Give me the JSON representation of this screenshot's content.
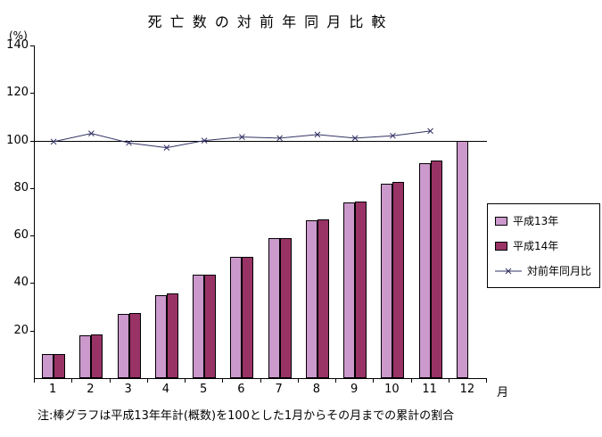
{
  "chart_data": {
    "type": "bar",
    "subtype": "grouped bars with overlaid line series",
    "title": "死 亡 数 の 対 前 年 同 月 比 較",
    "ylabel": "(%)",
    "xlabel": "月",
    "ylim": [
      0,
      140
    ],
    "ytick_step": 20,
    "grid": "single black reference line at 100 only",
    "legend_position": "right",
    "categories": [
      "1",
      "2",
      "3",
      "4",
      "5",
      "6",
      "7",
      "8",
      "9",
      "10",
      "11",
      "12"
    ],
    "reference_line": 100,
    "series": [
      {
        "name": "平成13年",
        "type": "bar",
        "color": "#cc99cc",
        "values": [
          10,
          18,
          27,
          35,
          43.5,
          51,
          59,
          66.5,
          74,
          82,
          90.5,
          100
        ]
      },
      {
        "name": "平成14年",
        "type": "bar",
        "color": "#993366",
        "values": [
          10,
          18.5,
          27.5,
          35.5,
          43.5,
          51,
          59,
          67,
          74.5,
          82.5,
          91.5,
          null
        ]
      },
      {
        "name": "対前年同月比",
        "type": "line",
        "color": "#333366",
        "marker": "x",
        "values": [
          99.5,
          103,
          99,
          97,
          100,
          101.5,
          101,
          102.5,
          101,
          102,
          104,
          null
        ]
      }
    ]
  },
  "note": "注:棒グラフは平成13年年計(概数)を100とした1月からその月までの累計の割合",
  "colors": {
    "axis": "#000000",
    "background": "#ffffff",
    "bar_series_1": "#cc99cc",
    "bar_series_2": "#993366",
    "line_series": "#333366"
  }
}
